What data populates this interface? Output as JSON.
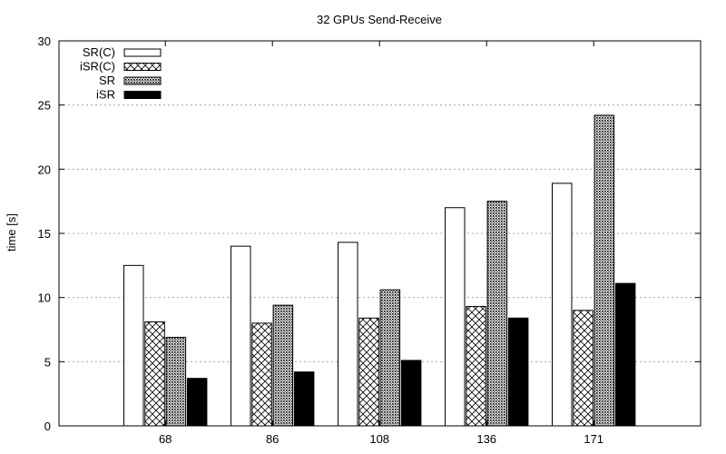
{
  "chart_data": {
    "type": "bar",
    "title": "32 GPUs Send-Receive",
    "xlabel": "",
    "ylabel": "time [s]",
    "categories": [
      "68",
      "86",
      "108",
      "136",
      "171"
    ],
    "ylim": [
      0,
      30
    ],
    "yticks": [
      0,
      5,
      10,
      15,
      20,
      25,
      30
    ],
    "grid": true,
    "legend_position": "top-left",
    "series": [
      {
        "name": "SR(C)",
        "pattern": "white-fill",
        "values": [
          12.5,
          14.0,
          14.3,
          17.0,
          18.9
        ]
      },
      {
        "name": "iSR(C)",
        "pattern": "crosshatch",
        "values": [
          8.1,
          8.0,
          8.4,
          9.3,
          9.0
        ]
      },
      {
        "name": "SR",
        "pattern": "dense-dots",
        "values": [
          6.9,
          9.4,
          10.6,
          17.5,
          24.2
        ]
      },
      {
        "name": "iSR",
        "pattern": "solid-black",
        "values": [
          3.7,
          4.2,
          5.1,
          8.4,
          11.1
        ]
      }
    ]
  }
}
